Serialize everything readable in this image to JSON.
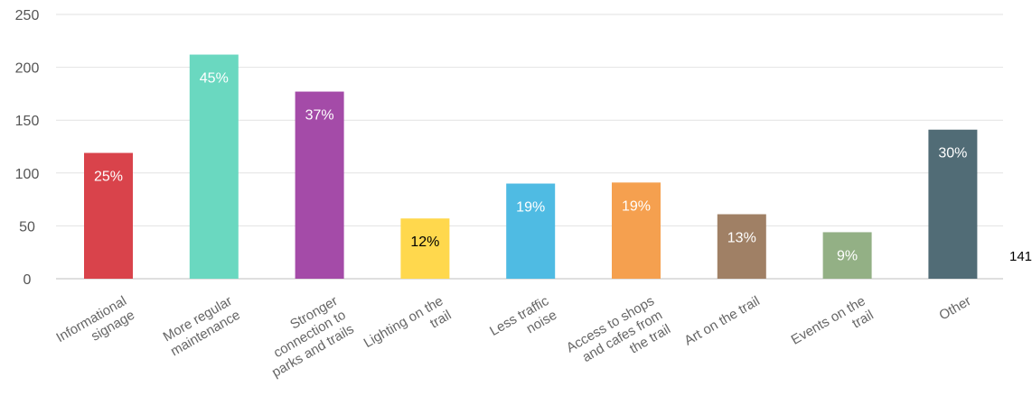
{
  "chart_data": {
    "type": "bar",
    "categories": [
      [
        "Informational",
        "signage"
      ],
      [
        "More regular",
        "maintenance"
      ],
      [
        "Stronger",
        "connection to",
        "parks and trails"
      ],
      [
        "Lighting on the",
        "trail"
      ],
      [
        "Less traffic",
        "noise"
      ],
      [
        "Access to shops",
        "and cafes from",
        "the trail"
      ],
      [
        "Art on the trail"
      ],
      [
        "Events on the",
        "trail"
      ],
      [
        "Other"
      ]
    ],
    "values": [
      119,
      212,
      177,
      57,
      90,
      91,
      61,
      44,
      141
    ],
    "data_labels": [
      "25%",
      "45%",
      "37%",
      "12%",
      "19%",
      "19%",
      "13%",
      "9%",
      "30%"
    ],
    "colors": [
      "#d9434b",
      "#6ad8c0",
      "#a44ba8",
      "#ffd84d",
      "#4fbbe3",
      "#f5a04f",
      "#a08065",
      "#93b085",
      "#516c76"
    ],
    "label_colors": [
      "#ffffff",
      "#ffffff",
      "#ffffff",
      "#000000",
      "#ffffff",
      "#ffffff",
      "#ffffff",
      "#ffffff",
      "#ffffff"
    ],
    "ylim": [
      0,
      250
    ],
    "yticks": [
      0,
      50,
      100,
      150,
      200,
      250
    ],
    "grid": true,
    "legend": "none",
    "annotation": "141"
  }
}
